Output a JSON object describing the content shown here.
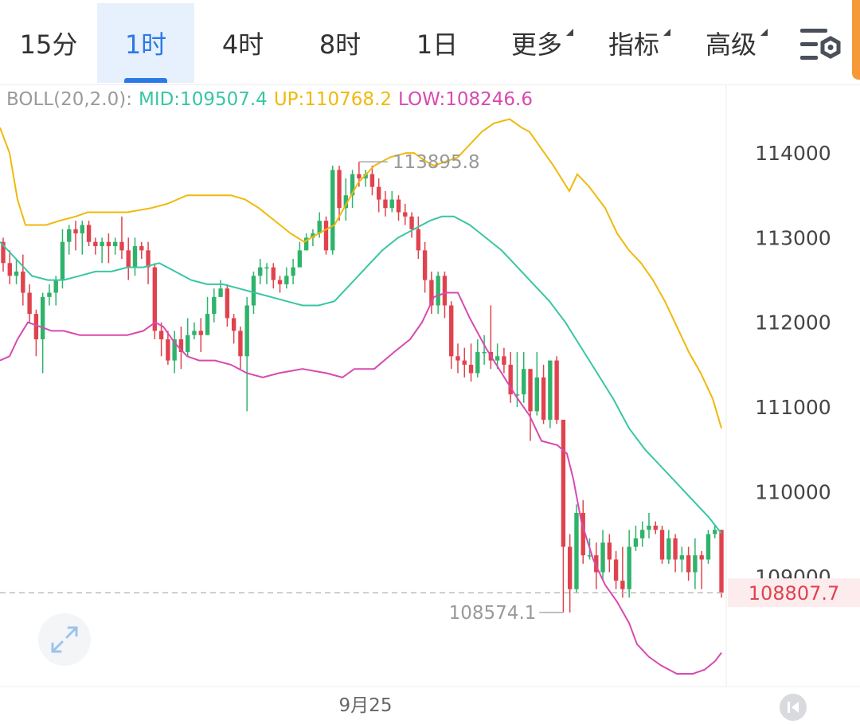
{
  "tabs": [
    {
      "label": "15分",
      "active": false
    },
    {
      "label": "1时",
      "active": true
    },
    {
      "label": "4时",
      "active": false
    },
    {
      "label": "8时",
      "active": false
    },
    {
      "label": "1日",
      "active": false
    },
    {
      "label": "更多",
      "dropdown": true
    },
    {
      "label": "指标",
      "dropdown": true
    },
    {
      "label": "高级",
      "dropdown": true
    }
  ],
  "icons": {
    "settings": "chart-settings-icon",
    "expand": "expand-icon",
    "rewind": "skip-to-start-icon"
  },
  "indicator": {
    "name": "BOLL(20,2.0):",
    "mid": "MID:109507.4",
    "up": "UP:110768.2",
    "low": "LOW:108246.6"
  },
  "colors": {
    "up_candle": "#2fb36b",
    "down_candle": "#e0434e",
    "mid_line": "#38c6a4",
    "upper_line": "#f0b90b",
    "lower_line": "#d84ab0",
    "active_tab": "#2b79e8",
    "price_tag": "#e0434e"
  },
  "chart_data": {
    "type": "candlestick",
    "y_ticks": [
      114000,
      113000,
      112000,
      111000,
      110000,
      109000
    ],
    "x_labels": [
      "9月25"
    ],
    "y_range": [
      107700,
      114800
    ],
    "high_label": "113895.8",
    "low_label": "108574.1",
    "last_price": "108807.7",
    "last_price_value": 108807.7,
    "candles": [
      [
        112950,
        112700,
        113000,
        112600
      ],
      [
        112700,
        112550,
        112850,
        112450
      ],
      [
        112550,
        112600,
        112750,
        112450
      ],
      [
        112600,
        112350,
        112800,
        112200
      ],
      [
        112350,
        112100,
        112450,
        112000
      ],
      [
        112100,
        111800,
        112150,
        111600
      ],
      [
        111800,
        112300,
        112350,
        111400
      ],
      [
        112300,
        112350,
        112450,
        112200
      ],
      [
        112350,
        112500,
        112550,
        112200
      ],
      [
        112500,
        112950,
        113100,
        112400
      ],
      [
        112950,
        113100,
        113150,
        112800
      ],
      [
        113100,
        113050,
        113200,
        112850
      ],
      [
        113050,
        113150,
        113200,
        112800
      ],
      [
        113150,
        112950,
        113200,
        112900
      ],
      [
        112950,
        112900,
        113000,
        112800
      ],
      [
        112900,
        112950,
        113000,
        112700
      ],
      [
        112950,
        112900,
        113050,
        112700
      ],
      [
        112900,
        112950,
        113000,
        112800
      ],
      [
        112950,
        112850,
        113250,
        112750
      ],
      [
        112850,
        112650,
        113000,
        112500
      ],
      [
        112650,
        112900,
        113000,
        112550
      ],
      [
        112900,
        112850,
        112950,
        112750
      ],
      [
        112850,
        112650,
        112950,
        112450
      ],
      [
        112650,
        111900,
        112700,
        111800
      ],
      [
        111900,
        111800,
        112000,
        111600
      ],
      [
        111800,
        111550,
        111900,
        111500
      ],
      [
        111550,
        111800,
        111900,
        111400
      ],
      [
        111800,
        111650,
        111950,
        111450
      ],
      [
        111650,
        111850,
        112050,
        111600
      ],
      [
        111850,
        111900,
        112000,
        111800
      ],
      [
        111900,
        111850,
        112050,
        111650
      ],
      [
        111850,
        112100,
        112300,
        111850
      ],
      [
        112100,
        112300,
        112400,
        112000
      ],
      [
        112300,
        112400,
        112500,
        112300
      ],
      [
        112400,
        112050,
        112450,
        111950
      ],
      [
        112050,
        111900,
        112100,
        111750
      ],
      [
        111900,
        111600,
        111950,
        111450
      ],
      [
        111600,
        112200,
        112300,
        110950
      ],
      [
        112200,
        112550,
        112600,
        112100
      ],
      [
        112550,
        112650,
        112750,
        112450
      ],
      [
        112650,
        112650,
        112700,
        112450
      ],
      [
        112650,
        112500,
        112700,
        112400
      ],
      [
        112500,
        112450,
        112550,
        112350
      ],
      [
        112450,
        112550,
        112650,
        112400
      ],
      [
        112550,
        112650,
        112750,
        112450
      ],
      [
        112650,
        112850,
        112950,
        112700
      ],
      [
        112850,
        113000,
        113050,
        112850
      ],
      [
        113000,
        113050,
        113100,
        112900
      ],
      [
        113050,
        113200,
        113300,
        113000
      ],
      [
        113200,
        112850,
        113250,
        112800
      ],
      [
        112850,
        113800,
        113850,
        112800
      ],
      [
        113800,
        113350,
        113850,
        113200
      ],
      [
        113350,
        113500,
        113700,
        113200
      ],
      [
        113500,
        113750,
        113800,
        113350
      ],
      [
        113750,
        113700,
        113895.8,
        113600
      ],
      [
        113700,
        113750,
        113800,
        113600
      ],
      [
        113750,
        113600,
        113850,
        113500
      ],
      [
        113600,
        113450,
        113700,
        113300
      ],
      [
        113450,
        113350,
        113550,
        113250
      ],
      [
        113350,
        113450,
        113550,
        113300
      ],
      [
        113450,
        113300,
        113500,
        113200
      ],
      [
        113300,
        113250,
        113400,
        113150
      ],
      [
        113250,
        113100,
        113300,
        113000
      ],
      [
        113100,
        112850,
        113250,
        112750
      ],
      [
        112850,
        112500,
        112950,
        112350
      ],
      [
        112500,
        112200,
        112600,
        112100
      ],
      [
        112200,
        112550,
        112600,
        112100
      ],
      [
        112550,
        112200,
        112600,
        112050
      ],
      [
        112200,
        111600,
        112250,
        111450
      ],
      [
        111600,
        111550,
        111750,
        111400
      ],
      [
        111550,
        111500,
        111700,
        111350
      ],
      [
        111500,
        111400,
        111750,
        111300
      ],
      [
        111400,
        111650,
        111800,
        111350
      ],
      [
        111650,
        111650,
        111850,
        111500
      ],
      [
        111650,
        111550,
        112200,
        111450
      ],
      [
        111550,
        111600,
        111750,
        111450
      ],
      [
        111600,
        111500,
        111700,
        111400
      ],
      [
        111500,
        111150,
        111650,
        111050
      ],
      [
        111150,
        111150,
        111650,
        111000
      ],
      [
        111150,
        111450,
        111650,
        111050
      ],
      [
        111450,
        110950,
        111450,
        110600
      ],
      [
        110950,
        111350,
        111650,
        110900
      ],
      [
        111350,
        110850,
        111500,
        110800
      ],
      [
        110850,
        111550,
        111550,
        110750
      ],
      [
        111550,
        110850,
        111600,
        110800
      ],
      [
        110850,
        109350,
        110850,
        108574.1
      ],
      [
        109350,
        108850,
        109500,
        108574.1
      ],
      [
        108850,
        109750,
        109850,
        108800
      ],
      [
        109750,
        109250,
        109900,
        109150
      ],
      [
        109250,
        109250,
        109450,
        109200
      ],
      [
        109250,
        109050,
        109400,
        108850
      ],
      [
        109050,
        109400,
        109550,
        108950
      ],
      [
        109400,
        109200,
        109500,
        109050
      ],
      [
        109200,
        108950,
        109300,
        108850
      ],
      [
        108950,
        108850,
        109350,
        108750
      ],
      [
        108850,
        109350,
        109550,
        108750
      ],
      [
        109350,
        109450,
        109600,
        109300
      ],
      [
        109450,
        109550,
        109650,
        109350
      ],
      [
        109550,
        109600,
        109750,
        109450
      ],
      [
        109600,
        109550,
        109650,
        109500
      ],
      [
        109550,
        109200,
        109600,
        109150
      ],
      [
        109200,
        109450,
        109550,
        109150
      ],
      [
        109450,
        109200,
        109500,
        109050
      ],
      [
        109200,
        109250,
        109350,
        109050
      ],
      [
        109250,
        109050,
        109350,
        108950
      ],
      [
        109050,
        109250,
        109450,
        108850
      ],
      [
        109250,
        109200,
        109300,
        108850
      ],
      [
        109200,
        109500,
        109550,
        109150
      ],
      [
        109500,
        109550,
        109600,
        109450
      ],
      [
        109550,
        108807.7,
        109550,
        108750
      ]
    ],
    "boll_up": [
      [
        0,
        114300
      ],
      [
        12,
        114000
      ],
      [
        22,
        113450
      ],
      [
        32,
        113150
      ],
      [
        45,
        113150
      ],
      [
        58,
        113150
      ],
      [
        75,
        113200
      ],
      [
        95,
        113250
      ],
      [
        110,
        113300
      ],
      [
        120,
        113300
      ],
      [
        138,
        113300
      ],
      [
        160,
        113300
      ],
      [
        190,
        113350
      ],
      [
        210,
        113400
      ],
      [
        235,
        113500
      ],
      [
        265,
        113500
      ],
      [
        290,
        113500
      ],
      [
        308,
        113450
      ],
      [
        325,
        113350
      ],
      [
        345,
        113200
      ],
      [
        365,
        113050
      ],
      [
        382,
        112950
      ],
      [
        400,
        113050
      ],
      [
        420,
        113150
      ],
      [
        435,
        113400
      ],
      [
        450,
        113650
      ],
      [
        470,
        113850
      ],
      [
        490,
        113950
      ],
      [
        510,
        114000
      ],
      [
        520,
        114000
      ],
      [
        535,
        113900
      ],
      [
        545,
        113850
      ],
      [
        560,
        113900
      ],
      [
        575,
        113950
      ],
      [
        590,
        114100
      ],
      [
        605,
        114250
      ],
      [
        620,
        114350
      ],
      [
        640,
        114400
      ],
      [
        655,
        114300
      ],
      [
        665,
        114250
      ],
      [
        680,
        114050
      ],
      [
        695,
        113850
      ],
      [
        715,
        113550
      ],
      [
        725,
        113750
      ],
      [
        740,
        113600
      ],
      [
        760,
        113350
      ],
      [
        775,
        113050
      ],
      [
        790,
        112850
      ],
      [
        805,
        112700
      ],
      [
        820,
        112500
      ],
      [
        835,
        112250
      ],
      [
        850,
        111950
      ],
      [
        865,
        111650
      ],
      [
        880,
        111400
      ],
      [
        895,
        111100
      ],
      [
        906,
        110750
      ]
    ],
    "boll_mid": [
      [
        0,
        112950
      ],
      [
        20,
        112750
      ],
      [
        40,
        112550
      ],
      [
        60,
        112500
      ],
      [
        80,
        112500
      ],
      [
        100,
        112550
      ],
      [
        120,
        112600
      ],
      [
        140,
        112600
      ],
      [
        160,
        112650
      ],
      [
        180,
        112650
      ],
      [
        200,
        112700
      ],
      [
        220,
        112600
      ],
      [
        240,
        112500
      ],
      [
        260,
        112450
      ],
      [
        280,
        112450
      ],
      [
        300,
        112400
      ],
      [
        320,
        112350
      ],
      [
        340,
        112300
      ],
      [
        360,
        112250
      ],
      [
        380,
        112200
      ],
      [
        400,
        112200
      ],
      [
        420,
        112250
      ],
      [
        440,
        112450
      ],
      [
        460,
        112650
      ],
      [
        480,
        112850
      ],
      [
        500,
        113000
      ],
      [
        520,
        113100
      ],
      [
        540,
        113200
      ],
      [
        555,
        113250
      ],
      [
        570,
        113250
      ],
      [
        590,
        113150
      ],
      [
        610,
        113000
      ],
      [
        630,
        112850
      ],
      [
        650,
        112650
      ],
      [
        670,
        112450
      ],
      [
        690,
        112250
      ],
      [
        710,
        112000
      ],
      [
        730,
        111700
      ],
      [
        750,
        111400
      ],
      [
        770,
        111100
      ],
      [
        790,
        110750
      ],
      [
        810,
        110500
      ],
      [
        830,
        110300
      ],
      [
        850,
        110100
      ],
      [
        870,
        109900
      ],
      [
        890,
        109700
      ],
      [
        906,
        109507.4
      ]
    ],
    "boll_low": [
      [
        0,
        111550
      ],
      [
        12,
        111600
      ],
      [
        22,
        111800
      ],
      [
        35,
        112000
      ],
      [
        50,
        111950
      ],
      [
        65,
        111900
      ],
      [
        80,
        111900
      ],
      [
        100,
        111850
      ],
      [
        120,
        111850
      ],
      [
        140,
        111850
      ],
      [
        160,
        111850
      ],
      [
        180,
        111900
      ],
      [
        195,
        112000
      ],
      [
        205,
        111950
      ],
      [
        220,
        111750
      ],
      [
        235,
        111600
      ],
      [
        250,
        111550
      ],
      [
        270,
        111550
      ],
      [
        290,
        111500
      ],
      [
        310,
        111400
      ],
      [
        330,
        111350
      ],
      [
        350,
        111400
      ],
      [
        380,
        111450
      ],
      [
        410,
        111400
      ],
      [
        430,
        111350
      ],
      [
        445,
        111450
      ],
      [
        470,
        111450
      ],
      [
        495,
        111650
      ],
      [
        515,
        111800
      ],
      [
        530,
        112000
      ],
      [
        545,
        112300
      ],
      [
        560,
        112350
      ],
      [
        575,
        112350
      ],
      [
        590,
        112050
      ],
      [
        610,
        111700
      ],
      [
        630,
        111400
      ],
      [
        650,
        111100
      ],
      [
        665,
        110900
      ],
      [
        680,
        110600
      ],
      [
        700,
        110550
      ],
      [
        712,
        110450
      ],
      [
        720,
        110150
      ],
      [
        730,
        109650
      ],
      [
        745,
        109200
      ],
      [
        760,
        108900
      ],
      [
        775,
        108700
      ],
      [
        790,
        108450
      ],
      [
        800,
        108200
      ],
      [
        815,
        108050
      ],
      [
        830,
        107950
      ],
      [
        850,
        107850
      ],
      [
        870,
        107850
      ],
      [
        885,
        107900
      ],
      [
        898,
        108000
      ],
      [
        906,
        108100
      ]
    ]
  }
}
